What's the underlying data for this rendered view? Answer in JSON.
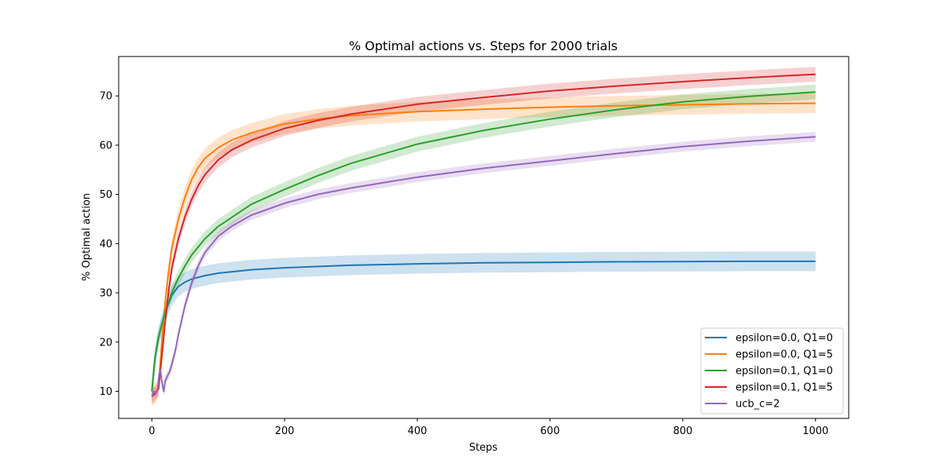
{
  "chart_data": {
    "type": "line",
    "title": "% Optimal actions vs. Steps for 2000 trials",
    "xlabel": "Steps",
    "ylabel": "% Optimal action",
    "xlim": [
      -50,
      1050
    ],
    "ylim": [
      4.5,
      78
    ],
    "xticks": [
      0,
      200,
      400,
      600,
      800,
      1000
    ],
    "yticks": [
      10,
      20,
      30,
      40,
      50,
      60,
      70
    ],
    "legend_position": "lower right",
    "grid": false,
    "series": [
      {
        "name": "epsilon=0.0, Q1=0",
        "color": "#1f77b4",
        "band": 2.0,
        "points": [
          [
            0,
            10
          ],
          [
            5,
            17
          ],
          [
            10,
            21
          ],
          [
            20,
            26
          ],
          [
            30,
            29.5
          ],
          [
            40,
            31.3
          ],
          [
            50,
            32.2
          ],
          [
            60,
            32.8
          ],
          [
            80,
            33.5
          ],
          [
            100,
            34.0
          ],
          [
            150,
            34.7
          ],
          [
            200,
            35.1
          ],
          [
            300,
            35.6
          ],
          [
            400,
            35.9
          ],
          [
            500,
            36.1
          ],
          [
            600,
            36.2
          ],
          [
            700,
            36.3
          ],
          [
            800,
            36.35
          ],
          [
            900,
            36.4
          ],
          [
            1000,
            36.4
          ]
        ]
      },
      {
        "name": "epsilon=0.0, Q1=5",
        "color": "#ff7f0e",
        "band": 2.0,
        "points": [
          [
            0,
            9
          ],
          [
            5,
            9.5
          ],
          [
            10,
            11
          ],
          [
            15,
            20
          ],
          [
            20,
            28
          ],
          [
            25,
            34
          ],
          [
            30,
            39
          ],
          [
            40,
            45
          ],
          [
            50,
            49.5
          ],
          [
            60,
            53
          ],
          [
            70,
            55.5
          ],
          [
            80,
            57.3
          ],
          [
            100,
            59.5
          ],
          [
            120,
            61
          ],
          [
            150,
            62.5
          ],
          [
            200,
            64.3
          ],
          [
            250,
            65.3
          ],
          [
            300,
            66
          ],
          [
            400,
            66.8
          ],
          [
            500,
            67.3
          ],
          [
            600,
            67.7
          ],
          [
            700,
            68
          ],
          [
            800,
            68.2
          ],
          [
            900,
            68.4
          ],
          [
            1000,
            68.5
          ]
        ]
      },
      {
        "name": "epsilon=0.1, Q1=0",
        "color": "#2ca02c",
        "band": 1.5,
        "points": [
          [
            0,
            10
          ],
          [
            5,
            17
          ],
          [
            10,
            21
          ],
          [
            20,
            26
          ],
          [
            30,
            30
          ],
          [
            40,
            33
          ],
          [
            50,
            35.5
          ],
          [
            60,
            37.7
          ],
          [
            80,
            41
          ],
          [
            100,
            43.5
          ],
          [
            150,
            48
          ],
          [
            200,
            51
          ],
          [
            250,
            53.8
          ],
          [
            300,
            56.3
          ],
          [
            400,
            60.2
          ],
          [
            500,
            63
          ],
          [
            600,
            65.3
          ],
          [
            700,
            67.2
          ],
          [
            800,
            68.8
          ],
          [
            900,
            69.9
          ],
          [
            1000,
            70.8
          ]
        ]
      },
      {
        "name": "epsilon=0.1, Q1=5",
        "color": "#d62728",
        "band": 1.5,
        "points": [
          [
            0,
            9
          ],
          [
            5,
            9.5
          ],
          [
            10,
            10.5
          ],
          [
            15,
            17
          ],
          [
            20,
            24
          ],
          [
            25,
            30
          ],
          [
            30,
            35
          ],
          [
            40,
            41
          ],
          [
            50,
            45.5
          ],
          [
            60,
            49
          ],
          [
            70,
            51.8
          ],
          [
            80,
            54
          ],
          [
            100,
            57
          ],
          [
            120,
            59
          ],
          [
            150,
            61
          ],
          [
            200,
            63.4
          ],
          [
            250,
            65
          ],
          [
            300,
            66.3
          ],
          [
            400,
            68.3
          ],
          [
            500,
            69.7
          ],
          [
            600,
            71
          ],
          [
            700,
            72
          ],
          [
            800,
            72.9
          ],
          [
            900,
            73.7
          ],
          [
            1000,
            74.4
          ]
        ]
      },
      {
        "name": "ucb_c=2",
        "color": "#9467bd",
        "band": 1.0,
        "points": [
          [
            0,
            9
          ],
          [
            3,
            10
          ],
          [
            6,
            9.5
          ],
          [
            9,
            10.5
          ],
          [
            11,
            13.5
          ],
          [
            13,
            14.3
          ],
          [
            15,
            12
          ],
          [
            18,
            10
          ],
          [
            20,
            12
          ],
          [
            23,
            13
          ],
          [
            27,
            14
          ],
          [
            30,
            15.5
          ],
          [
            35,
            18
          ],
          [
            40,
            21.5
          ],
          [
            50,
            27.5
          ],
          [
            60,
            32
          ],
          [
            70,
            35.5
          ],
          [
            80,
            38.2
          ],
          [
            100,
            41.5
          ],
          [
            120,
            43.5
          ],
          [
            150,
            45.8
          ],
          [
            200,
            48.2
          ],
          [
            250,
            50
          ],
          [
            300,
            51.3
          ],
          [
            400,
            53.5
          ],
          [
            500,
            55.3
          ],
          [
            600,
            56.8
          ],
          [
            700,
            58.3
          ],
          [
            800,
            59.7
          ],
          [
            900,
            60.8
          ],
          [
            1000,
            61.7
          ]
        ]
      }
    ]
  }
}
